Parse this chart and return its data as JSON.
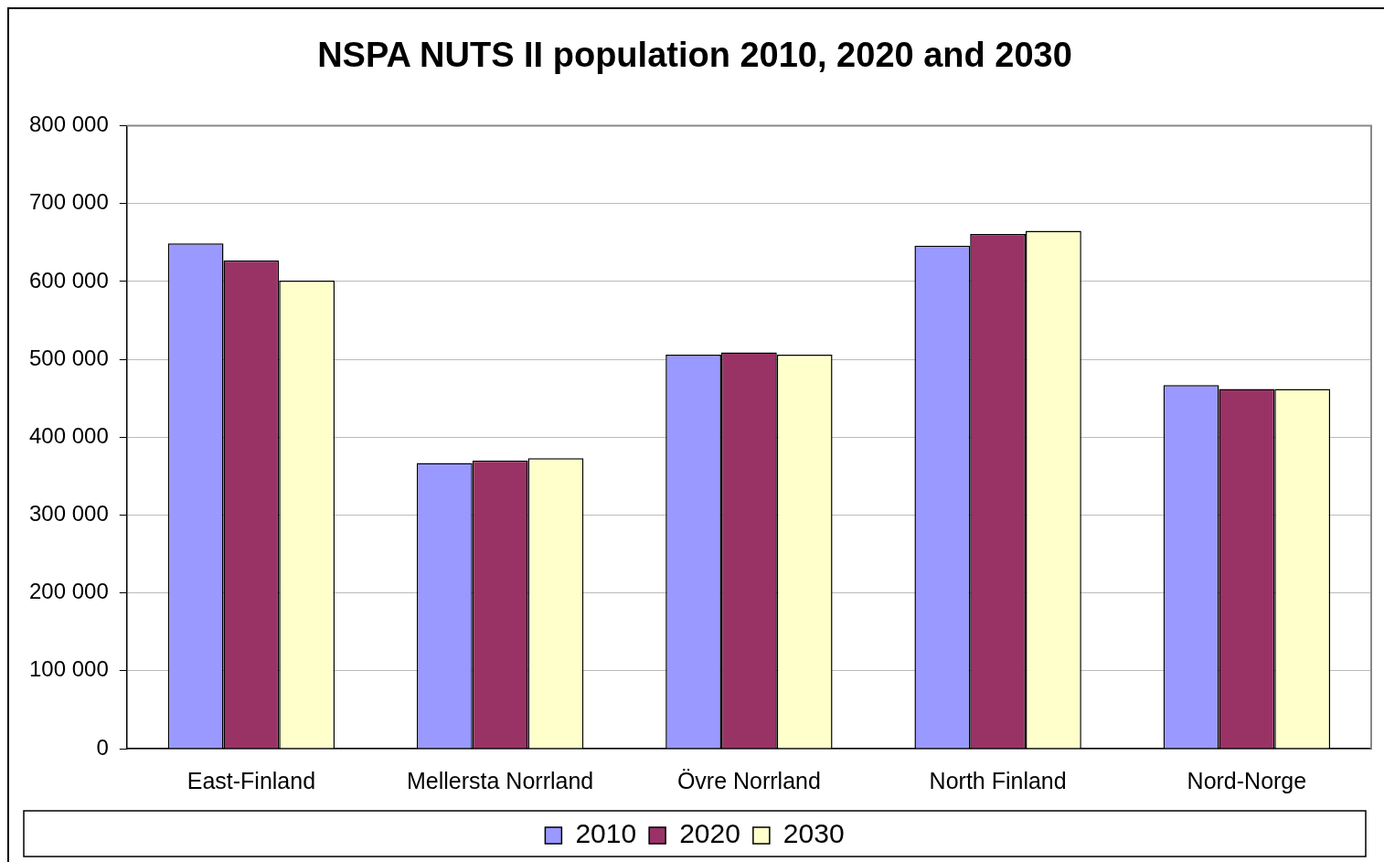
{
  "chart_data": {
    "type": "bar",
    "title": "NSPA NUTS II population 2010, 2020 and 2030",
    "categories": [
      "East-Finland",
      "Mellersta Norrland",
      "Övre Norrland",
      "North Finland",
      "Nord-Norge"
    ],
    "series": [
      {
        "name": "2010",
        "color": "#9999ff",
        "values": [
          649000,
          367000,
          506000,
          646000,
          467000
        ]
      },
      {
        "name": "2020",
        "color": "#993366",
        "values": [
          627000,
          370000,
          509000,
          661000,
          462000
        ]
      },
      {
        "name": "2030",
        "color": "#ffffcc",
        "values": [
          601000,
          373000,
          506000,
          665000,
          462000
        ]
      }
    ],
    "ylim": [
      0,
      800000
    ],
    "yticks": [
      {
        "value": 0,
        "label": "0"
      },
      {
        "value": 100000,
        "label": "100 000"
      },
      {
        "value": 200000,
        "label": "200 000"
      },
      {
        "value": 300000,
        "label": "300 000"
      },
      {
        "value": 400000,
        "label": "400 000"
      },
      {
        "value": 500000,
        "label": "500 000"
      },
      {
        "value": 600000,
        "label": "600 000"
      },
      {
        "value": 700000,
        "label": "700 000"
      },
      {
        "value": 800000,
        "label": "800 000"
      }
    ],
    "grid": "y",
    "legend": "bottom"
  }
}
